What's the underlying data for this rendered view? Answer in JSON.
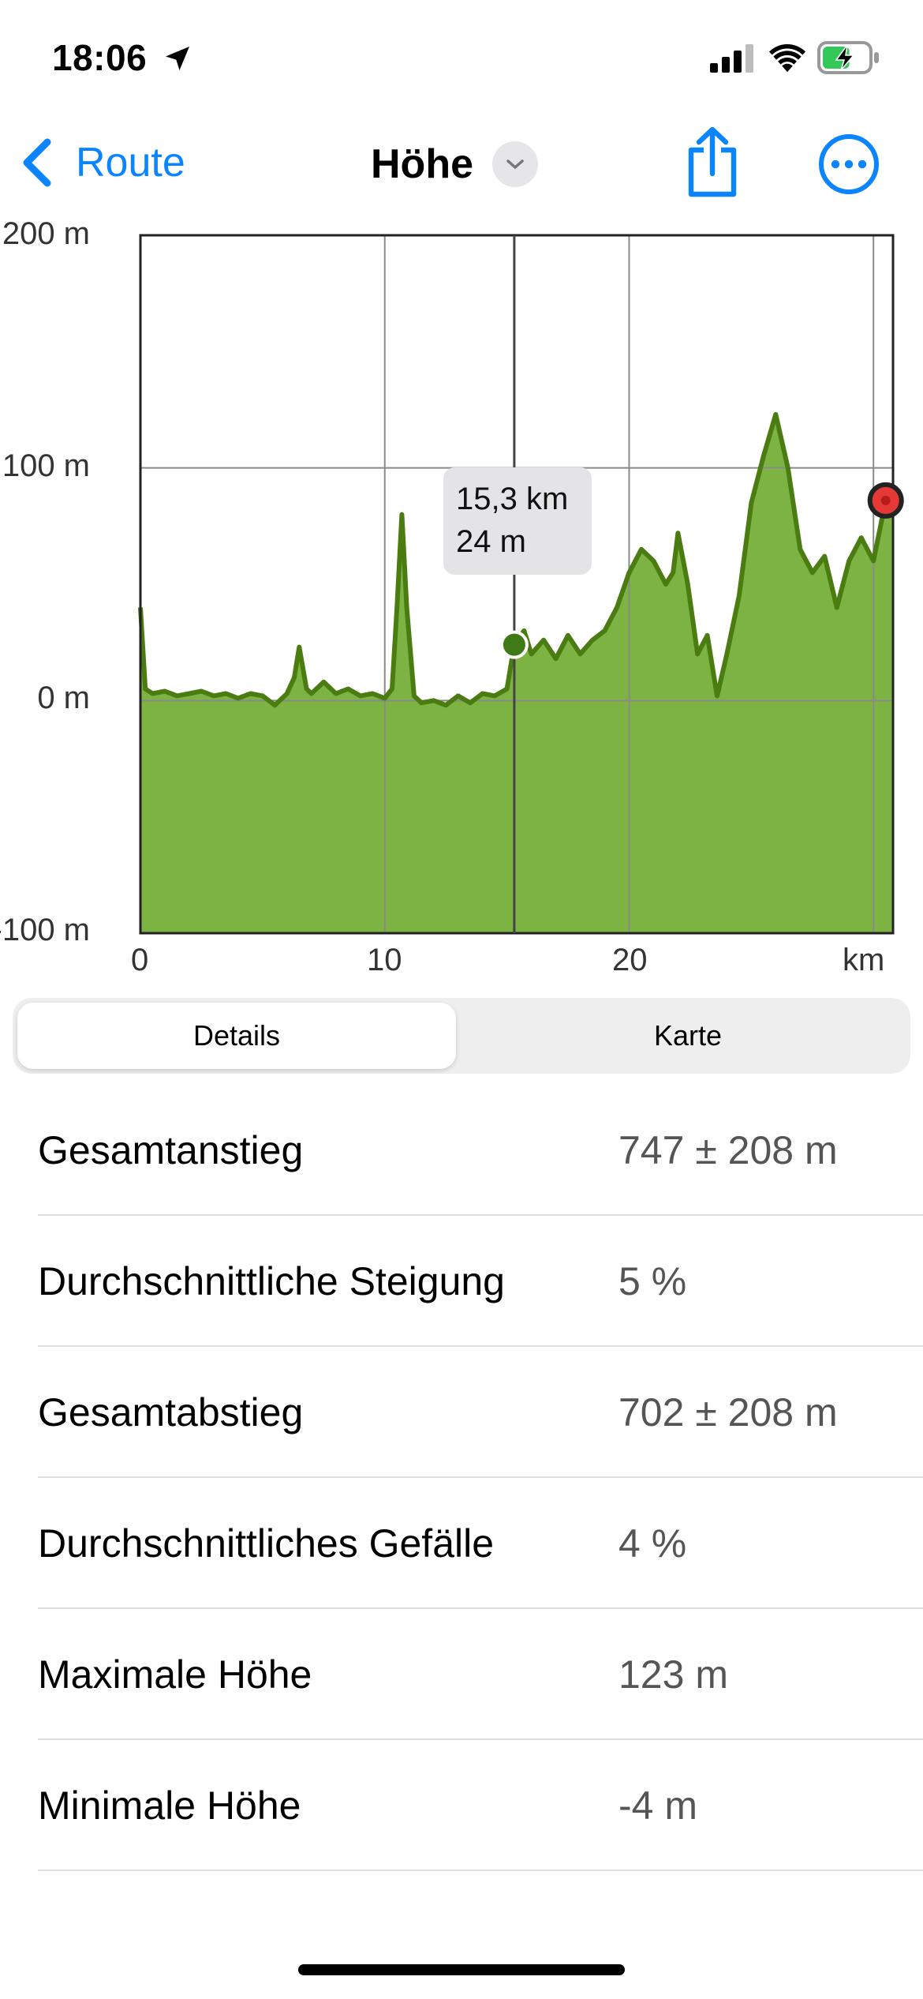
{
  "status_bar": {
    "time": "18:06",
    "location_icon": "location-arrow-icon",
    "signal_icon": "cellular-signal-icon",
    "wifi_icon": "wifi-icon",
    "battery_icon": "battery-charging-icon",
    "battery_level": 0.6
  },
  "nav": {
    "back_label": "Route",
    "title": "Höhe",
    "share_icon": "share-icon",
    "more_icon": "ellipsis-circle-icon"
  },
  "chart_data": {
    "type": "area",
    "x_unit": "km",
    "xticks": [
      "0",
      "10",
      "20"
    ],
    "xlabel": "km",
    "yticks": [
      "200 m",
      "100 m",
      "0 m",
      "-100 m"
    ],
    "xlim": [
      0,
      30.8
    ],
    "ylim": [
      -100,
      200
    ],
    "grid": true,
    "fill_color": "#7cb342",
    "line_color": "#4a7c12",
    "cursor": {
      "x": 15.3,
      "y": 24,
      "label_x": "15,3 km",
      "label_y": "24 m"
    },
    "end_marker": {
      "x": 30.5,
      "y": 86
    },
    "profile": [
      [
        0,
        40
      ],
      [
        0.2,
        5
      ],
      [
        0.5,
        3
      ],
      [
        1,
        4
      ],
      [
        1.5,
        2
      ],
      [
        2,
        3
      ],
      [
        2.5,
        4
      ],
      [
        3,
        2
      ],
      [
        3.5,
        3
      ],
      [
        4,
        1
      ],
      [
        4.5,
        3
      ],
      [
        5,
        2
      ],
      [
        5.5,
        -2
      ],
      [
        6,
        3
      ],
      [
        6.3,
        10
      ],
      [
        6.5,
        23
      ],
      [
        6.8,
        5
      ],
      [
        7,
        3
      ],
      [
        7.5,
        8
      ],
      [
        8,
        3
      ],
      [
        8.5,
        5
      ],
      [
        9,
        2
      ],
      [
        9.5,
        3
      ],
      [
        10,
        1
      ],
      [
        10.3,
        5
      ],
      [
        10.5,
        40
      ],
      [
        10.7,
        80
      ],
      [
        10.9,
        40
      ],
      [
        11.2,
        2
      ],
      [
        11.5,
        -1
      ],
      [
        12,
        0
      ],
      [
        12.5,
        -2
      ],
      [
        13,
        2
      ],
      [
        13.5,
        -1
      ],
      [
        14,
        3
      ],
      [
        14.5,
        2
      ],
      [
        15,
        5
      ],
      [
        15.3,
        24
      ],
      [
        15.7,
        30
      ],
      [
        16,
        20
      ],
      [
        16.5,
        26
      ],
      [
        17,
        18
      ],
      [
        17.5,
        28
      ],
      [
        18,
        20
      ],
      [
        18.5,
        26
      ],
      [
        19,
        30
      ],
      [
        19.5,
        40
      ],
      [
        20,
        55
      ],
      [
        20.5,
        65
      ],
      [
        21,
        60
      ],
      [
        21.5,
        50
      ],
      [
        21.8,
        55
      ],
      [
        22,
        72
      ],
      [
        22.4,
        50
      ],
      [
        22.8,
        20
      ],
      [
        23.2,
        28
      ],
      [
        23.6,
        2
      ],
      [
        24,
        20
      ],
      [
        24.5,
        45
      ],
      [
        25,
        85
      ],
      [
        25.5,
        105
      ],
      [
        26,
        123
      ],
      [
        26.5,
        100
      ],
      [
        27,
        65
      ],
      [
        27.5,
        55
      ],
      [
        28,
        62
      ],
      [
        28.5,
        40
      ],
      [
        29,
        60
      ],
      [
        29.5,
        70
      ],
      [
        30,
        60
      ],
      [
        30.5,
        86
      ],
      [
        30.8,
        86
      ]
    ]
  },
  "segmented": {
    "active": "Details",
    "inactive": "Karte"
  },
  "details": [
    {
      "label": "Gesamtanstieg",
      "value": "747 ± 208 m"
    },
    {
      "label": "Durchschnittliche Steigung",
      "value": "5 %"
    },
    {
      "label": "Gesamtabstieg",
      "value": "702 ± 208 m"
    },
    {
      "label": "Durchschnittliches Gefälle",
      "value": "4 %"
    },
    {
      "label": "Maximale Höhe",
      "value": "123 m"
    },
    {
      "label": "Minimale Höhe",
      "value": "-4 m"
    }
  ]
}
